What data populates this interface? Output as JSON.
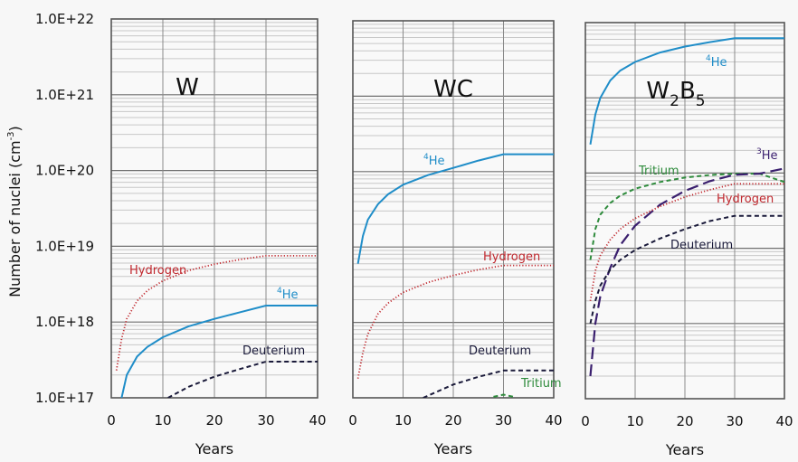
{
  "chart_data": {
    "type": "line",
    "ylabel": "Number of nuclei (cm",
    "ylabel_sup": "-3",
    "ylabel_close": ")",
    "yscale": "log",
    "ylim": [
      1e+17,
      1e+22
    ],
    "ytick_labels": [
      "1.0E+17",
      "1.0E+18",
      "1.0E+19",
      "1.0E+20",
      "1.0E+21",
      "1.0E+22"
    ],
    "xlim": [
      0,
      40
    ],
    "xtick_labels": [
      "0",
      "10",
      "20",
      "30",
      "40"
    ],
    "grid": true,
    "colors": {
      "he4": "#1f8dc8",
      "hydrogen": "#c0282e",
      "deuterium": "#1a1a3a",
      "tritium": "#2e8b3c",
      "he3": "#3a1f6e"
    },
    "panels": [
      {
        "title": "W",
        "title_sub": "",
        "title_tail": "",
        "xlabel": "Years",
        "series": [
          {
            "name": "Hydrogen",
            "key": "hydrogen",
            "style": "dotted",
            "label_pre": "",
            "label_sup": "",
            "label": "Hydrogen",
            "x": [
              1,
              2,
              3,
              5,
              7,
              10,
              15,
              20,
              25,
              30,
              40
            ],
            "y": [
              2.3e+17,
              6e+17,
              1.1e+18,
              1.9e+18,
              2.6e+18,
              3.5e+18,
              4.8e+18,
              5.8e+18,
              6.7e+18,
              7.5e+18,
              7.5e+18
            ]
          },
          {
            "name": "4He",
            "key": "he4",
            "style": "solid",
            "label_pre": "",
            "label_sup": "4",
            "label": "He",
            "x": [
              2,
              3,
              5,
              7,
              10,
              15,
              20,
              25,
              30,
              40
            ],
            "y": [
              1e+17,
              2e+17,
              3.5e+17,
              4.7e+17,
              6.3e+17,
              8.8e+17,
              1.1e+18,
              1.35e+18,
              1.65e+18,
              1.65e+18
            ]
          },
          {
            "name": "Deuterium",
            "key": "deuterium",
            "style": "dashed",
            "label_pre": "",
            "label_sup": "",
            "label": "Deuterium",
            "x": [
              11,
              15,
              20,
              25,
              30,
              40
            ],
            "y": [
              1e+17,
              1.4e+17,
              1.9e+17,
              2.4e+17,
              3e+17,
              3e+17
            ]
          }
        ]
      },
      {
        "title": "WC",
        "title_sub": "",
        "title_tail": "",
        "xlabel": "Years",
        "series": [
          {
            "name": "4He",
            "key": "he4",
            "style": "solid",
            "label_pre": "",
            "label_sup": "4",
            "label": "He",
            "x": [
              1,
              2,
              3,
              5,
              7,
              10,
              15,
              20,
              25,
              30,
              40
            ],
            "y": [
              6e+18,
              1.4e+19,
              2.3e+19,
              3.7e+19,
              5e+19,
              6.7e+19,
              9e+19,
              1.12e+20,
              1.4e+20,
              1.7e+20,
              1.7e+20
            ]
          },
          {
            "name": "Hydrogen",
            "key": "hydrogen",
            "style": "dotted",
            "label_pre": "",
            "label_sup": "",
            "label": "Hydrogen",
            "x": [
              1,
              2,
              3,
              5,
              7,
              10,
              15,
              20,
              25,
              30,
              40
            ],
            "y": [
              1.8e+17,
              4e+17,
              7e+17,
              1.3e+18,
              1.8e+18,
              2.5e+18,
              3.4e+18,
              4.2e+18,
              5e+18,
              5.7e+18,
              5.7e+18
            ]
          },
          {
            "name": "Deuterium",
            "key": "deuterium",
            "style": "dashed",
            "label_pre": "",
            "label_sup": "",
            "label": "Deuterium",
            "x": [
              14,
              20,
              25,
              30,
              40
            ],
            "y": [
              1e+17,
              1.5e+17,
              1.9e+17,
              2.3e+17,
              2.3e+17
            ]
          },
          {
            "name": "Tritium",
            "key": "tritium",
            "style": "dashed",
            "label_pre": "",
            "label_sup": "",
            "label": "Tritium",
            "x": [
              28,
              30,
              32
            ],
            "y": [
              1.03e+17,
              1.1e+17,
              1.03e+17
            ]
          }
        ]
      },
      {
        "title": "W",
        "title_sub": "2",
        "title_tail": "B",
        "title_sub2": "5",
        "xlabel": "Years",
        "series": [
          {
            "name": "4He",
            "key": "he4",
            "style": "solid",
            "label_pre": "",
            "label_sup": "4",
            "label": "He",
            "x": [
              1,
              2,
              3,
              5,
              7,
              10,
              15,
              20,
              25,
              30,
              40
            ],
            "y": [
              2.4e+20,
              6e+20,
              1e+21,
              1.7e+21,
              2.3e+21,
              3e+21,
              4e+21,
              4.8e+21,
              5.5e+21,
              6.2e+21,
              6.2e+21
            ]
          },
          {
            "name": "Tritium",
            "key": "tritium",
            "style": "dashed",
            "label_pre": "",
            "label_sup": "",
            "label": "Tritium",
            "x": [
              1,
              2,
              3,
              5,
              7,
              10,
              15,
              20,
              25,
              30,
              35,
              40
            ],
            "y": [
              7e+18,
              1.8e+19,
              2.8e+19,
              4e+19,
              5e+19,
              6.2e+19,
              7.6e+19,
              8.7e+19,
              9.4e+19,
              9.8e+19,
              9.8e+19,
              7.6e+19
            ]
          },
          {
            "name": "3He",
            "key": "he3",
            "style": "longdash",
            "label_pre": "",
            "label_sup": "3",
            "label": "He",
            "x": [
              1,
              2,
              3,
              5,
              7,
              10,
              15,
              20,
              25,
              30,
              35,
              40
            ],
            "y": [
              2e+17,
              1e+18,
              2.3e+18,
              5.5e+18,
              1.1e+19,
              2e+19,
              3.8e+19,
              5.8e+19,
              7.8e+19,
              9.5e+19,
              9.8e+19,
              1.15e+20
            ]
          },
          {
            "name": "Hydrogen",
            "key": "hydrogen",
            "style": "dotted",
            "label_pre": "",
            "label_sup": "",
            "label": "Hydrogen",
            "x": [
              1,
              2,
              3,
              5,
              7,
              10,
              15,
              20,
              25,
              30,
              40
            ],
            "y": [
              2e+18,
              5e+18,
              8e+18,
              1.3e+19,
              1.8e+19,
              2.5e+19,
              3.6e+19,
              4.8e+19,
              6e+19,
              7.2e+19,
              7.2e+19
            ]
          },
          {
            "name": "Deuterium",
            "key": "deuterium",
            "style": "dashed",
            "label_pre": "",
            "label_sup": "",
            "label": "Deuterium",
            "x": [
              1,
              2,
              3,
              5,
              7,
              10,
              15,
              20,
              25,
              30,
              40
            ],
            "y": [
              1e+18,
              2e+18,
              3.2e+18,
              5.2e+18,
              7e+18,
              9.5e+18,
              1.35e+19,
              1.8e+19,
              2.3e+19,
              2.7e+19,
              2.7e+19
            ]
          }
        ]
      }
    ]
  }
}
